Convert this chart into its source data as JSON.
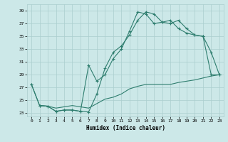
{
  "xlabel": "Humidex (Indice chaleur)",
  "background_color": "#cce8e8",
  "grid_color": "#aacece",
  "line_color": "#2e7d6e",
  "xlim": [
    -0.5,
    23.5
  ],
  "ylim": [
    22.5,
    40.0
  ],
  "xticks": [
    0,
    1,
    2,
    3,
    4,
    5,
    6,
    7,
    8,
    9,
    10,
    11,
    12,
    13,
    14,
    15,
    16,
    17,
    18,
    19,
    20,
    21,
    22,
    23
  ],
  "yticks": [
    23,
    25,
    27,
    29,
    31,
    33,
    35,
    37,
    39
  ],
  "curve1_x": [
    0,
    1,
    2,
    3,
    4,
    5,
    6,
    7,
    8,
    9,
    10,
    11,
    12,
    13,
    14,
    15,
    16,
    17,
    18,
    19,
    20,
    21,
    22,
    23
  ],
  "curve1_y": [
    27.5,
    24.2,
    24.1,
    23.3,
    23.5,
    23.5,
    23.3,
    23.2,
    26.0,
    30.0,
    32.5,
    33.5,
    35.2,
    37.5,
    38.8,
    38.5,
    37.2,
    37.0,
    37.5,
    36.2,
    35.2,
    35.0,
    32.5,
    29.0
  ],
  "curve2_x": [
    0,
    1,
    2,
    3,
    4,
    5,
    6,
    7,
    8,
    9,
    10,
    11,
    12,
    13,
    14,
    15,
    16,
    17,
    18,
    19,
    20,
    21,
    22,
    23
  ],
  "curve2_y": [
    27.5,
    24.2,
    24.1,
    23.3,
    23.5,
    23.5,
    23.3,
    30.5,
    28.0,
    29.0,
    31.5,
    33.0,
    35.8,
    38.8,
    38.5,
    37.0,
    37.2,
    37.5,
    36.2,
    35.5,
    35.2,
    35.0,
    29.0,
    29.0
  ],
  "curve3_x": [
    1,
    2,
    3,
    4,
    5,
    6,
    7,
    8,
    9,
    10,
    11,
    12,
    13,
    14,
    15,
    16,
    17,
    18,
    19,
    20,
    21,
    22,
    23
  ],
  "curve3_y": [
    24.2,
    24.1,
    23.8,
    24.0,
    24.2,
    24.0,
    23.8,
    24.5,
    25.2,
    25.5,
    26.0,
    26.8,
    27.2,
    27.5,
    27.5,
    27.5,
    27.5,
    27.8,
    28.0,
    28.2,
    28.5,
    28.8,
    29.0
  ]
}
